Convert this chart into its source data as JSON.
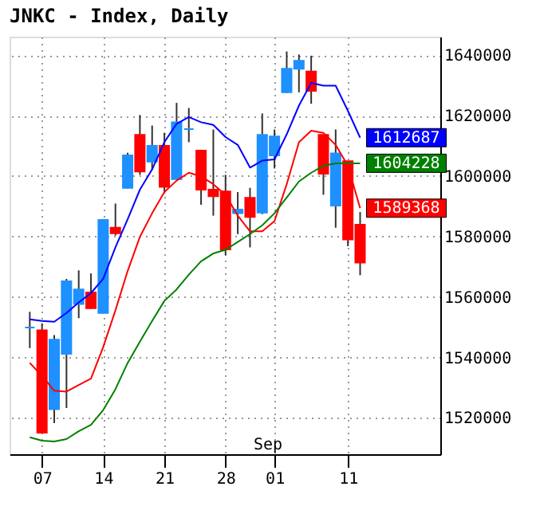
{
  "chart_data": {
    "type": "candlestick",
    "title": "JNKC - Index, Daily",
    "categories": [
      null,
      "07",
      null,
      null,
      null,
      null,
      "14",
      null,
      null,
      null,
      null,
      "21",
      null,
      null,
      null,
      null,
      "28",
      null,
      null,
      null,
      "01",
      null,
      null,
      null,
      null,
      null,
      "11",
      null
    ],
    "ohlc": [
      [
        1549900,
        1555100,
        1543100,
        1549900
      ],
      [
        1549000,
        1551300,
        1515100,
        1515100
      ],
      [
        1522900,
        1547400,
        1518300,
        1545900
      ],
      [
        1541200,
        1566000,
        1523300,
        1565200
      ],
      [
        1557700,
        1568800,
        1553000,
        1562500
      ],
      [
        1561500,
        1567800,
        1556100,
        1556300
      ],
      [
        1554700,
        1585800,
        1554600,
        1585500
      ],
      [
        1582900,
        1590900,
        1580300,
        1581100
      ],
      [
        1596100,
        1607700,
        1595900,
        1606800
      ],
      [
        1613600,
        1620200,
        1600400,
        1601500
      ],
      [
        1604800,
        1616700,
        1602000,
        1610000
      ],
      [
        1610000,
        1614300,
        1594300,
        1596400
      ],
      [
        1599000,
        1624200,
        1598900,
        1617800
      ],
      [
        1615500,
        1622500,
        1611200,
        1615500
      ],
      [
        1608400,
        1608400,
        1590500,
        1595500
      ],
      [
        1595500,
        1615400,
        1586900,
        1593300
      ],
      [
        1594900,
        1600400,
        1573800,
        1575700
      ],
      [
        1587700,
        1594700,
        1580800,
        1588900
      ],
      [
        1592800,
        1596100,
        1576400,
        1586500
      ],
      [
        1587900,
        1620700,
        1587400,
        1613600
      ],
      [
        1606800,
        1615400,
        1602500,
        1613100
      ],
      [
        1627700,
        1641200,
        1627500,
        1635500
      ],
      [
        1635500,
        1640200,
        1627700,
        1638100
      ],
      [
        1634600,
        1639800,
        1623900,
        1628200
      ],
      [
        1613600,
        1613600,
        1593800,
        1600800
      ],
      [
        1590200,
        1615400,
        1582900,
        1607500
      ],
      [
        1604900,
        1604900,
        1576800,
        1579000
      ],
      [
        1583900,
        1588100,
        1567200,
        1571400
      ]
    ],
    "colors": [
      "#1e90ff",
      "#ff0000",
      "#1e90ff",
      "#1e90ff",
      "#1e90ff",
      "#ff0000",
      "#1e90ff",
      "#ff0000",
      "#1e90ff",
      "#ff0000",
      "#1e90ff",
      "#ff0000",
      "#1e90ff",
      "#1e90ff",
      "#ff0000",
      "#ff0000",
      "#ff0000",
      "#1e90ff",
      "#ff0000",
      "#1e90ff",
      "#1e90ff",
      "#1e90ff",
      "#1e90ff",
      "#ff0000",
      "#ff0000",
      "#1e90ff",
      "#ff0000",
      "#ff0000"
    ],
    "series": [
      {
        "type": "line",
        "color": "#0000ff",
        "values": [
          1552600,
          1552100,
          1551800,
          1554700,
          1558200,
          1561300,
          1566000,
          1576400,
          1585700,
          1595500,
          1602200,
          1611200,
          1617300,
          1619500,
          1617800,
          1616900,
          1612900,
          1610300,
          1602800,
          1605100,
          1605500,
          1613800,
          1623300,
          1630800,
          1629900,
          1629900,
          1621600,
          1612687
        ],
        "value_labels": [
          null,
          null,
          null,
          null,
          null,
          null,
          null,
          null,
          null,
          null,
          null,
          null,
          null,
          null,
          null,
          null,
          null,
          null,
          null,
          null,
          null,
          null,
          null,
          null,
          null,
          null,
          null,
          "1612687"
        ]
      },
      {
        "type": "line",
        "color": "#ff0000",
        "values": [
          1538200,
          1533900,
          1529000,
          1528700,
          1530900,
          1533000,
          1543400,
          1555600,
          1568600,
          1579900,
          1587700,
          1594700,
          1598500,
          1601100,
          1599900,
          1597300,
          1593800,
          1586900,
          1581700,
          1581700,
          1585100,
          1597300,
          1611200,
          1615000,
          1614300,
          1610300,
          1603400,
          1589368
        ],
        "value_labels": [
          null,
          null,
          null,
          null,
          null,
          null,
          null,
          null,
          null,
          null,
          null,
          null,
          null,
          null,
          null,
          null,
          null,
          null,
          null,
          null,
          null,
          null,
          null,
          null,
          null,
          null,
          null,
          "1589368"
        ]
      },
      {
        "type": "line",
        "color": "#008000",
        "values": [
          1513600,
          1512500,
          1512200,
          1513000,
          1515600,
          1517700,
          1522600,
          1529500,
          1538200,
          1545200,
          1552100,
          1558700,
          1562500,
          1567400,
          1571800,
          1574400,
          1575600,
          1578200,
          1580800,
          1583700,
          1587700,
          1592900,
          1598200,
          1601100,
          1603400,
          1604200,
          1604200,
          1604228
        ],
        "value_labels": [
          null,
          null,
          null,
          null,
          null,
          null,
          null,
          null,
          null,
          null,
          null,
          null,
          null,
          null,
          null,
          null,
          null,
          null,
          null,
          null,
          null,
          null,
          null,
          null,
          null,
          null,
          null,
          "1604228"
        ]
      }
    ],
    "annotations": [
      "Sep"
    ],
    "ylim": [
      1508000,
      1646100
    ],
    "yticks": [
      1520000,
      1540000,
      1560000,
      1580000,
      1600000,
      1620000,
      1640000
    ],
    "grid": true
  }
}
